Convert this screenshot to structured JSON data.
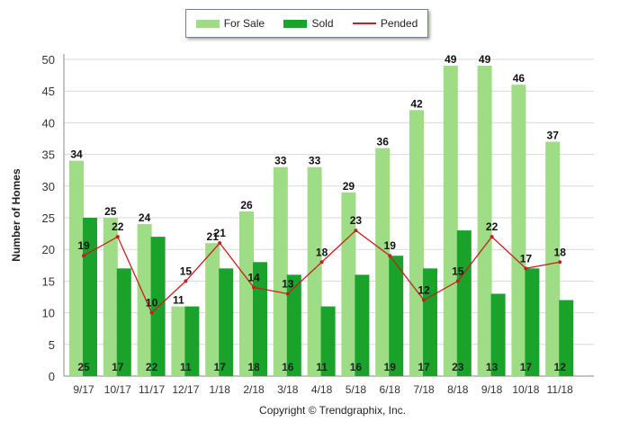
{
  "legend": {
    "for_sale_label": "For Sale",
    "sold_label": "Sold",
    "pended_label": "Pended"
  },
  "copyright": "Copyright © Trendgraphix, Inc.",
  "colors": {
    "for_sale": "#9fdc86",
    "sold": "#1aa32a",
    "pended": "#c81e1e",
    "grid": "#d9d9d9"
  },
  "chart_data": {
    "type": "bar",
    "ylabel": "Number of Homes",
    "xlabel": "",
    "ylim": [
      0,
      50
    ],
    "yticks": [
      0,
      5,
      10,
      15,
      20,
      25,
      30,
      35,
      40,
      45,
      50
    ],
    "grid": true,
    "legend_position": "top-center",
    "categories": [
      "9/17",
      "10/17",
      "11/17",
      "12/17",
      "1/18",
      "2/18",
      "3/18",
      "4/18",
      "5/18",
      "6/18",
      "7/18",
      "8/18",
      "9/18",
      "10/18",
      "11/18"
    ],
    "series": [
      {
        "name": "For Sale",
        "type": "bar",
        "values": [
          34,
          25,
          24,
          11,
          21,
          26,
          33,
          33,
          29,
          36,
          42,
          49,
          49,
          46,
          37
        ]
      },
      {
        "name": "Sold",
        "type": "bar",
        "values": [
          25,
          17,
          22,
          11,
          17,
          18,
          16,
          11,
          16,
          19,
          17,
          23,
          13,
          17,
          12
        ]
      },
      {
        "name": "Pended",
        "type": "line",
        "values": [
          19,
          22,
          10,
          15,
          21,
          14,
          13,
          18,
          23,
          19,
          12,
          15,
          22,
          17,
          18
        ]
      }
    ]
  }
}
